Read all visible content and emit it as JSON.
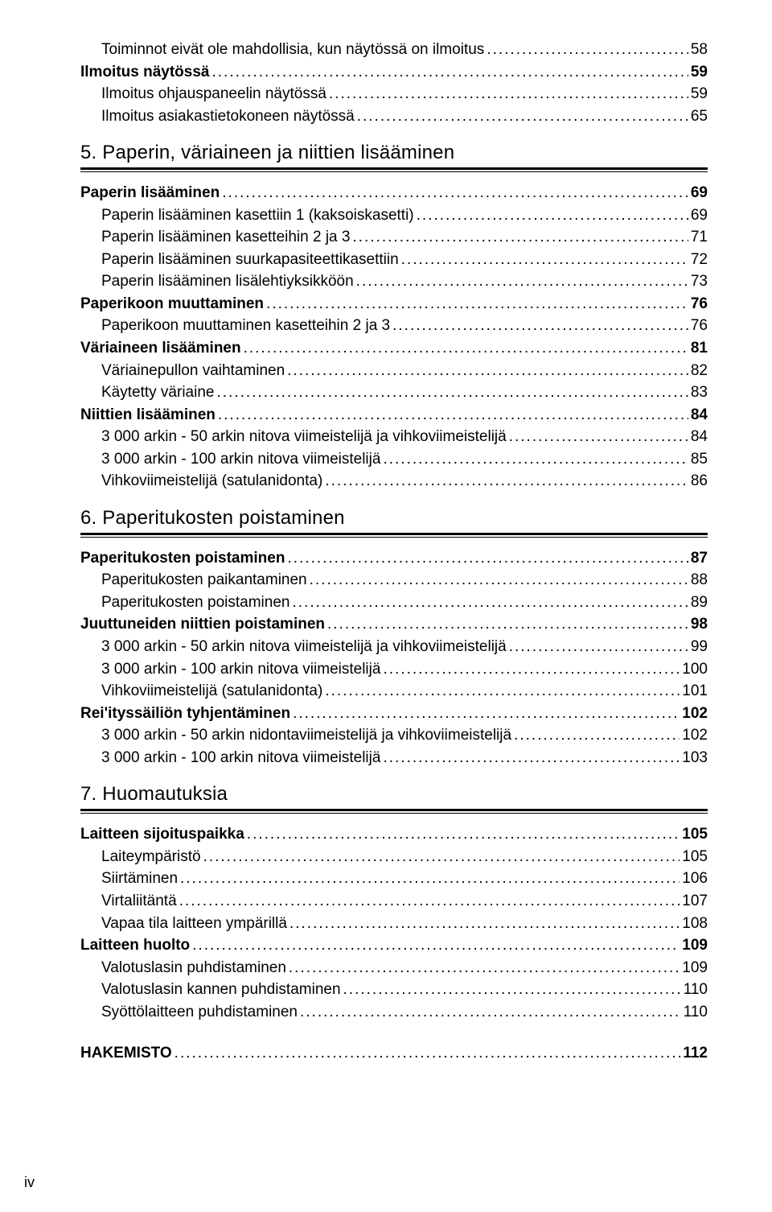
{
  "toc": [
    {
      "type": "sub",
      "label": "Toiminnot eivät ole mahdollisia, kun näytössä on ilmoitus",
      "page": "58"
    },
    {
      "type": "bold",
      "label": "Ilmoitus näytössä",
      "page": "59"
    },
    {
      "type": "sub",
      "label": "Ilmoitus ohjauspaneelin näytössä",
      "page": "59"
    },
    {
      "type": "sub",
      "label": "Ilmoitus asiakastietokoneen näytössä",
      "page": "65"
    },
    {
      "type": "chapter",
      "label": "5. Paperin, väriaineen ja niittien lisääminen"
    },
    {
      "type": "bold",
      "label": "Paperin lisääminen",
      "page": "69"
    },
    {
      "type": "sub",
      "label": "Paperin lisääminen kasettiin 1 (kaksoiskasetti)",
      "page": "69"
    },
    {
      "type": "sub",
      "label": "Paperin lisääminen kasetteihin 2 ja 3",
      "page": "71"
    },
    {
      "type": "sub",
      "label": "Paperin lisääminen suurkapasiteettikasettiin",
      "page": "72"
    },
    {
      "type": "sub",
      "label": "Paperin lisääminen lisälehtiyksikköön",
      "page": "73"
    },
    {
      "type": "bold",
      "label": "Paperikoon muuttaminen",
      "page": "76"
    },
    {
      "type": "sub",
      "label": "Paperikoon muuttaminen kasetteihin 2 ja 3",
      "page": "76"
    },
    {
      "type": "bold",
      "label": "Väriaineen lisääminen",
      "page": "81"
    },
    {
      "type": "sub",
      "label": "Väriainepullon vaihtaminen",
      "page": "82"
    },
    {
      "type": "sub",
      "label": "Käytetty väriaine",
      "page": "83"
    },
    {
      "type": "bold",
      "label": "Niittien lisääminen",
      "page": "84"
    },
    {
      "type": "sub",
      "label": "3 000 arkin - 50 arkin nitova viimeistelijä ja vihkoviimeistelijä",
      "page": "84"
    },
    {
      "type": "sub",
      "label": "3 000 arkin - 100 arkin nitova viimeistelijä",
      "page": "85"
    },
    {
      "type": "sub",
      "label": "Vihkoviimeistelijä (satulanidonta)",
      "page": "86"
    },
    {
      "type": "chapter",
      "label": "6. Paperitukosten poistaminen"
    },
    {
      "type": "bold",
      "label": "Paperitukosten poistaminen",
      "page": "87"
    },
    {
      "type": "sub",
      "label": "Paperitukosten paikantaminen",
      "page": "88"
    },
    {
      "type": "sub",
      "label": "Paperitukosten poistaminen",
      "page": "89"
    },
    {
      "type": "bold",
      "label": "Juuttuneiden niittien poistaminen",
      "page": "98"
    },
    {
      "type": "sub",
      "label": "3 000 arkin - 50 arkin nitova viimeistelijä ja vihkoviimeistelijä",
      "page": "99"
    },
    {
      "type": "sub",
      "label": "3 000 arkin - 100 arkin nitova viimeistelijä",
      "page": "100"
    },
    {
      "type": "sub",
      "label": "Vihkoviimeistelijä (satulanidonta)",
      "page": "101"
    },
    {
      "type": "bold",
      "label": "Rei'ityssäiliön tyhjentäminen",
      "page": "102"
    },
    {
      "type": "sub",
      "label": "3 000 arkin - 50 arkin nidontaviimeistelijä ja vihkoviimeistelijä",
      "page": "102"
    },
    {
      "type": "sub",
      "label": "3 000 arkin - 100 arkin nitova viimeistelijä",
      "page": "103"
    },
    {
      "type": "chapter",
      "label": "7. Huomautuksia"
    },
    {
      "type": "bold",
      "label": "Laitteen sijoituspaikka",
      "page": "105"
    },
    {
      "type": "sub",
      "label": "Laiteympäristö",
      "page": "105"
    },
    {
      "type": "sub",
      "label": "Siirtäminen",
      "page": "106"
    },
    {
      "type": "sub",
      "label": "Virtaliitäntä",
      "page": "107"
    },
    {
      "type": "sub",
      "label": "Vapaa tila laitteen ympärillä",
      "page": "108"
    },
    {
      "type": "bold",
      "label": "Laitteen huolto",
      "page": "109"
    },
    {
      "type": "sub",
      "label": "Valotuslasin puhdistaminen",
      "page": "109"
    },
    {
      "type": "sub",
      "label": "Valotuslasin kannen puhdistaminen",
      "page": "110"
    },
    {
      "type": "sub",
      "label": "Syöttölaitteen puhdistaminen",
      "page": "110"
    },
    {
      "type": "index",
      "label": "HAKEMISTO",
      "page": "112"
    }
  ],
  "page_number": "iv"
}
